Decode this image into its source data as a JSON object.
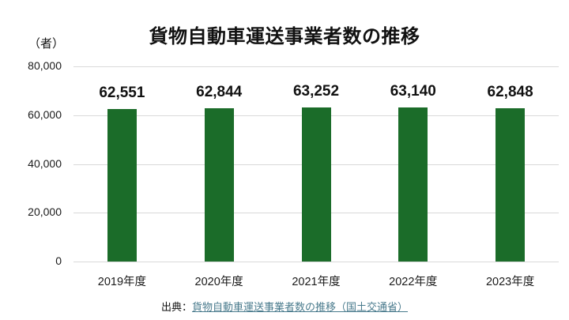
{
  "title": "貨物自動車運送事業者数の推移",
  "unit_label": "（者）",
  "source": {
    "prefix": "出典：",
    "link_text": "貨物自動車運送事業者数の推移（国土交通省）"
  },
  "colors": {
    "bar": "#1b6c29",
    "gridline": "#d9d9d9",
    "link": "#4a7b8d",
    "text": "#111111"
  },
  "chart_data": {
    "type": "bar",
    "title": "貨物自動車運送事業者数の推移",
    "categories": [
      "2019年度",
      "2020年度",
      "2021年度",
      "2022年度",
      "2023年度"
    ],
    "values": [
      62551,
      62844,
      63252,
      63140,
      62848
    ],
    "value_labels": [
      "62,551",
      "62,844",
      "63,252",
      "63,140",
      "62,848"
    ],
    "xlabel": "",
    "ylabel": "（者）",
    "ylim": [
      0,
      80000
    ],
    "yticks": [
      0,
      20000,
      40000,
      60000,
      80000
    ],
    "ytick_labels": [
      "0",
      "20,000",
      "40,000",
      "60,000",
      "80,000"
    ],
    "grid": true,
    "legend": false
  }
}
